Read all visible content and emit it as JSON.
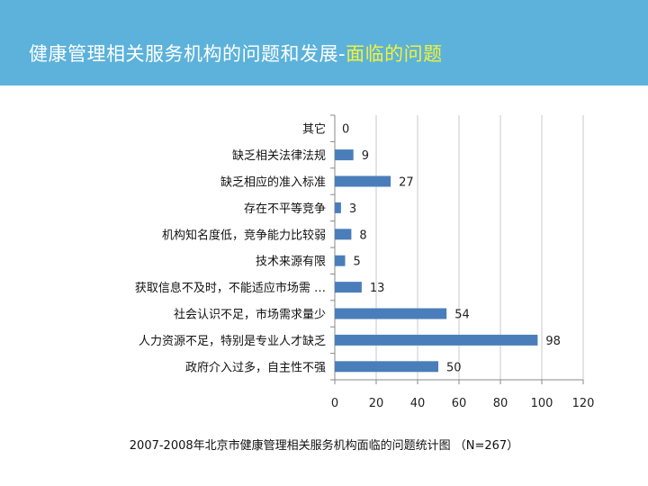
{
  "header": {
    "title_main": "健康管理相关服务机构的问题和发展-",
    "title_highlight": "面临的问题"
  },
  "caption": "2007-2008年北京市健康管理相关服务机构面临的问题统计图 （N=267）",
  "colors": {
    "header": "#5cb2da",
    "highlight": "#f2f23a",
    "bar": "#4a7ebb"
  },
  "chart_data": {
    "type": "bar",
    "orientation": "horizontal",
    "categories": [
      "其它",
      "缺乏相关法律法规",
      "缺乏相应的准入标准",
      "存在不平等竞争",
      "机构知名度低，竞争能力比较弱",
      "技术来源有限",
      "获取信息不及时，不能适应市场需 …",
      "社会认识不足，市场需求量少",
      "人力资源不足，特别是专业人才缺乏",
      "政府介入过多，自主性不强"
    ],
    "values": [
      0,
      9,
      27,
      3,
      8,
      5,
      13,
      54,
      98,
      50
    ],
    "xlim": [
      0,
      120
    ],
    "xticks": [
      0,
      20,
      40,
      60,
      80,
      100,
      120
    ],
    "grid": true,
    "data_labels": true,
    "legend": "none"
  }
}
